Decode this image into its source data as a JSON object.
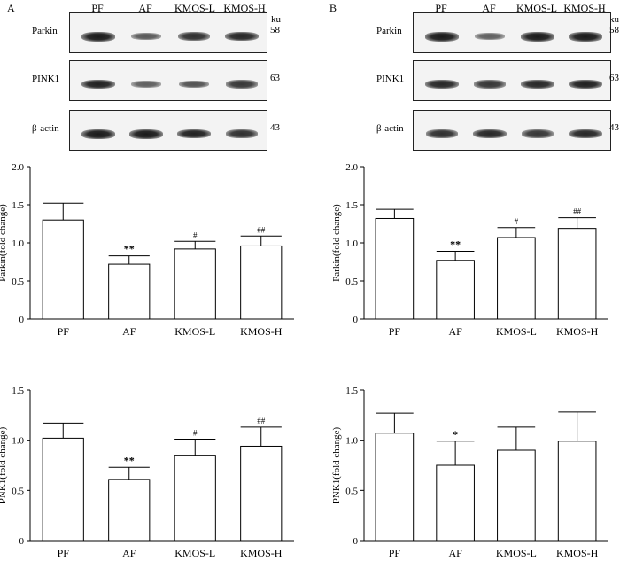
{
  "panels": [
    {
      "letter": "A",
      "lanes": [
        "PF",
        "AF",
        "KMOS-L",
        "KMOS-H"
      ],
      "ku_label": "ku",
      "blots": [
        {
          "label": "Parkin",
          "kda": "58",
          "intensity": [
            1.0,
            0.55,
            0.85,
            0.9
          ]
        },
        {
          "label": "PINK1",
          "kda": "63",
          "intensity": [
            0.95,
            0.5,
            0.6,
            0.8
          ]
        },
        {
          "label": "β-actin",
          "kda": "43",
          "intensity": [
            1.0,
            1.0,
            0.95,
            0.85
          ]
        }
      ]
    },
    {
      "letter": "B",
      "lanes": [
        "PF",
        "AF",
        "KMOS-L",
        "KMOS-H"
      ],
      "ku_label": "ku",
      "blots": [
        {
          "label": "Parkin",
          "kda": "58",
          "intensity": [
            1.0,
            0.5,
            1.0,
            1.0
          ]
        },
        {
          "label": "PINK1",
          "kda": "63",
          "intensity": [
            0.9,
            0.8,
            0.9,
            0.95
          ]
        },
        {
          "label": "β-actin",
          "kda": "43",
          "intensity": [
            0.85,
            0.9,
            0.8,
            0.9
          ]
        }
      ]
    }
  ],
  "chart_data": [
    {
      "type": "bar",
      "id": "A-parkin",
      "categories": [
        "PF",
        "AF",
        "KMOS-L",
        "KMOS-H"
      ],
      "values": [
        1.3,
        0.72,
        0.92,
        0.96
      ],
      "errors": [
        0.22,
        0.11,
        0.1,
        0.13
      ],
      "annotations": [
        "",
        "**",
        "#",
        "##"
      ],
      "ylabel": "Parkin(fold change)",
      "ylim": [
        0,
        2.0
      ],
      "yticks": [
        "0",
        "0.5",
        "1.0",
        "1.5",
        "2.0"
      ]
    },
    {
      "type": "bar",
      "id": "B-parkin",
      "categories": [
        "PF",
        "AF",
        "KMOS-L",
        "KMOS-H"
      ],
      "values": [
        1.32,
        0.77,
        1.07,
        1.19
      ],
      "errors": [
        0.12,
        0.12,
        0.13,
        0.14
      ],
      "annotations": [
        "",
        "**",
        "#",
        "##"
      ],
      "ylabel": "Parkin(fold change)",
      "ylim": [
        0,
        2.0
      ],
      "yticks": [
        "0",
        "0.5",
        "1.0",
        "1.5",
        "2.0"
      ]
    },
    {
      "type": "bar",
      "id": "A-pink1",
      "categories": [
        "PF",
        "AF",
        "KMOS-L",
        "KMOS-H"
      ],
      "values": [
        1.02,
        0.61,
        0.85,
        0.94
      ],
      "errors": [
        0.15,
        0.12,
        0.16,
        0.19
      ],
      "annotations": [
        "",
        "**",
        "#",
        "##"
      ],
      "ylabel": "PNK1(fold change)",
      "ylim": [
        0,
        1.5
      ],
      "yticks": [
        "0",
        "0.5",
        "1.0",
        "1.5"
      ]
    },
    {
      "type": "bar",
      "id": "B-pink1",
      "categories": [
        "PF",
        "AF",
        "KMOS-L",
        "KMOS-H"
      ],
      "values": [
        1.07,
        0.75,
        0.9,
        0.99
      ],
      "errors": [
        0.2,
        0.24,
        0.23,
        0.29
      ],
      "annotations": [
        "",
        "*",
        "",
        ""
      ],
      "ylabel": "PNK1(fold change)",
      "ylim": [
        0,
        1.5
      ],
      "yticks": [
        "0",
        "0.5",
        "1.0",
        "1.5"
      ]
    }
  ]
}
